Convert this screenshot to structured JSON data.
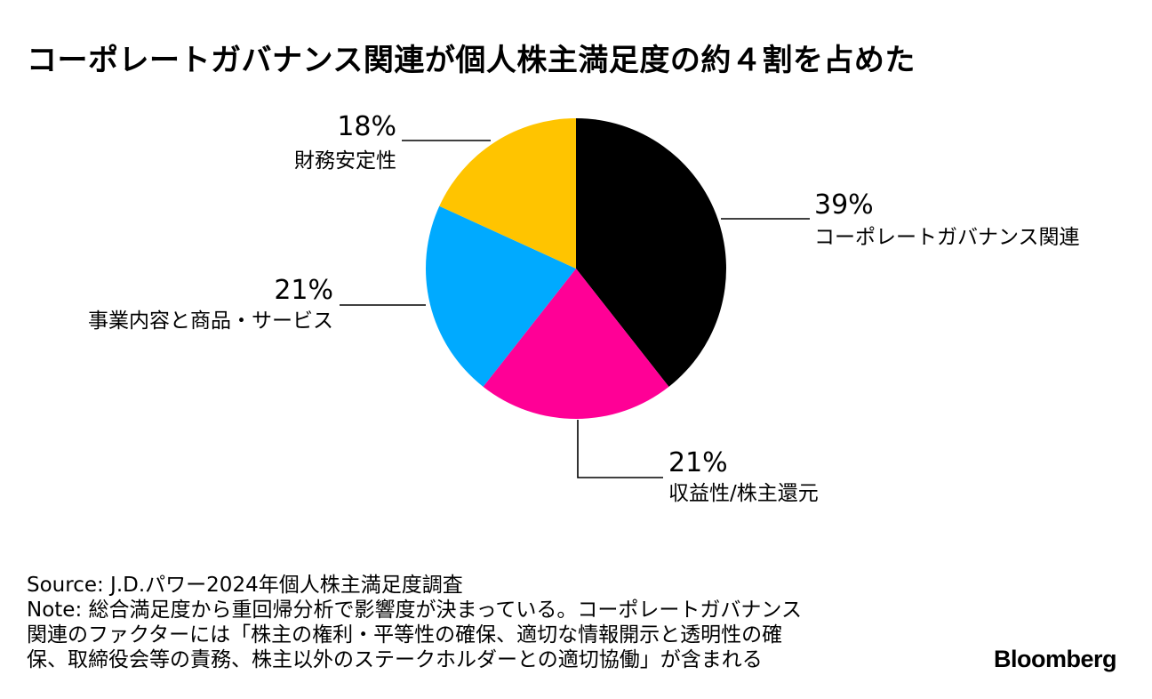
{
  "title": "コーポレートガバナンス関連が個人株主満足度の約４割を占めた",
  "chart_data": {
    "type": "pie",
    "title": "コーポレートガバナンス関連が個人株主満足度の約４割を占めた",
    "slices": [
      {
        "label": "コーポレートガバナンス関連",
        "value": 39,
        "value_label": "39%",
        "color": "#000000"
      },
      {
        "label": "収益性/株主還元",
        "value": 21,
        "value_label": "21%",
        "color": "#FF0096"
      },
      {
        "label": "事業内容と商品・サービス",
        "value": 21,
        "value_label": "21%",
        "color": "#00AAFF"
      },
      {
        "label": "財務安定性",
        "value": 18,
        "value_label": "18%",
        "color": "#FFC400"
      }
    ],
    "start_angle": "12 o'clock",
    "direction": "clockwise"
  },
  "footer": {
    "source": "Source: J.D.パワー2024年個人株主満足度調査",
    "note_lines": [
      "Note: 総合満足度から重回帰分析で影響度が決まっている。コーポレートガバナンス",
      "関連のファクターには「株主の権利・平等性の確保、適切な情報開示と透明性の確",
      "保、取締役会等の責務、株主以外のステークホルダーとの適切協働」が含まれる"
    ]
  },
  "brand": "Bloomberg"
}
